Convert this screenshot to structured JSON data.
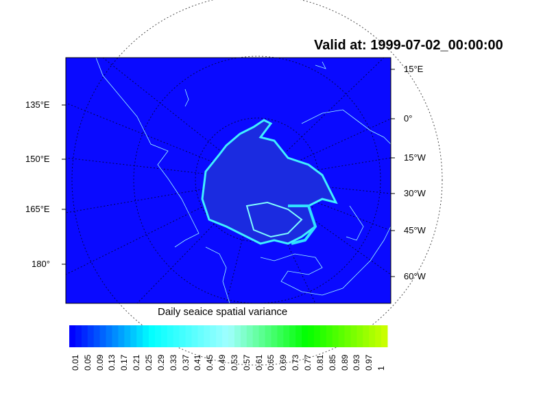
{
  "title": "Valid at: 1999-07-02_00:00:00",
  "map": {
    "projection": "polar stereographic (north)",
    "field": "sea ice spatial variance",
    "background_color": "#0a0aff",
    "coastline_color": "#a0ffff",
    "left_labels": [
      "135°E",
      "150°E",
      "165°E",
      "180°"
    ],
    "right_labels": [
      "15°E",
      "0°",
      "15°W",
      "30°W",
      "45°W",
      "60°W"
    ]
  },
  "colorbar": {
    "title": "Daily seaice spatial variance",
    "labels": [
      "0.01",
      "0.05",
      "0.09",
      "0.13",
      "0.17",
      "0.21",
      "0.25",
      "0.29",
      "0.33",
      "0.37",
      "0.41",
      "0.45",
      "0.49",
      "0.53",
      "0.57",
      "0.61",
      "0.65",
      "0.69",
      "0.73",
      "0.77",
      "0.81",
      "0.85",
      "0.89",
      "0.93",
      "0.97",
      "1"
    ],
    "colors": [
      "#0000ff",
      "#00ffff",
      "#a0ffff",
      "#00ff00",
      "#c8ff00"
    ]
  }
}
